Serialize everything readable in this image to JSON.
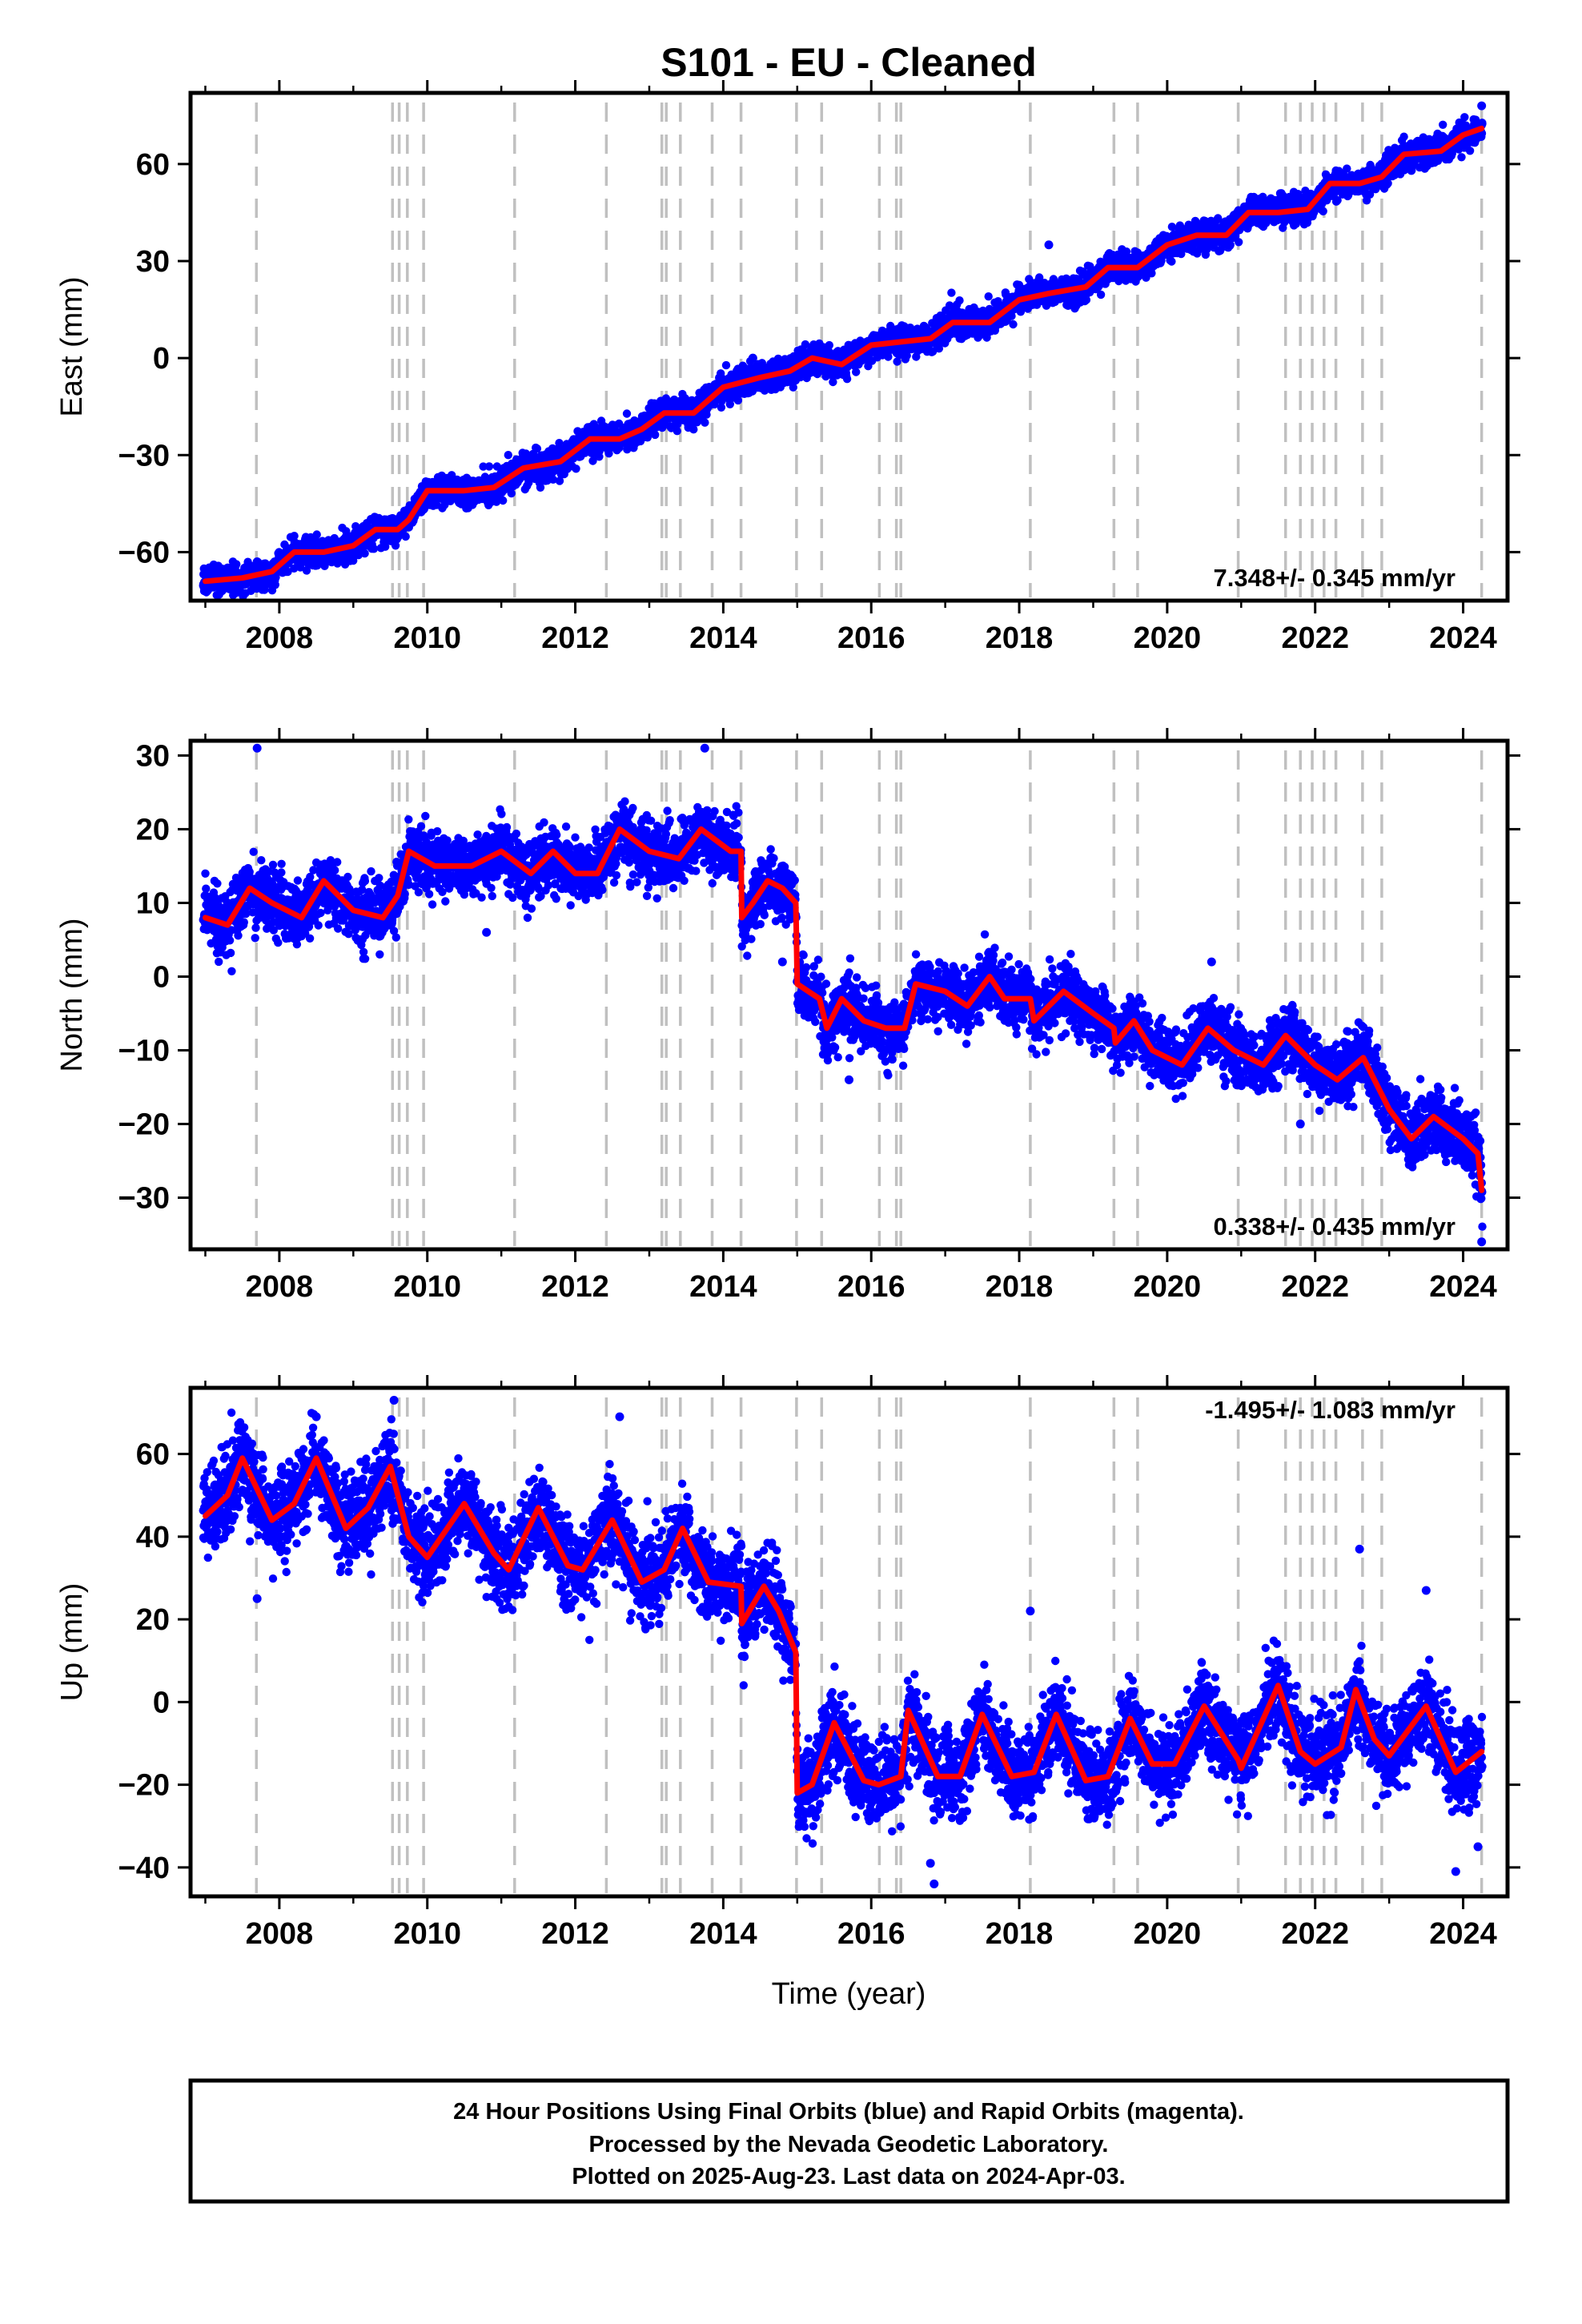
{
  "title": "S101  - EU - Cleaned",
  "xlabel": "Time (year)",
  "footer": {
    "line1": "24 Hour Positions Using Final Orbits (blue) and Rapid Orbits (magenta).",
    "line2": "Processed by the Nevada Geodetic Laboratory.",
    "line3": "Plotted on 2025-Aug-23. Last data on 2024-Apr-03."
  },
  "colors": {
    "points": "#0000ff",
    "model": "#ff0000",
    "events": "#c0c0c0",
    "frame": "#000000"
  },
  "chart_data": [
    {
      "type": "scatter",
      "component": "east",
      "ylabel": "East (mm)",
      "rate_text": "7.348+/- 0.345 mm/yr",
      "rate_position": "bottom-right",
      "xlim": [
        2006.8,
        2024.6
      ],
      "ylim": [
        -75,
        82
      ],
      "x_ticks": [
        2008,
        2010,
        2012,
        2014,
        2016,
        2018,
        2020,
        2022,
        2024
      ],
      "y_ticks": [
        -60,
        -30,
        0,
        30,
        60
      ],
      "model_points": [
        [
          2007.0,
          -69
        ],
        [
          2007.5,
          -68
        ],
        [
          2007.9,
          -66
        ],
        [
          2008.2,
          -60
        ],
        [
          2008.6,
          -60
        ],
        [
          2009.0,
          -58
        ],
        [
          2009.3,
          -53
        ],
        [
          2009.6,
          -53
        ],
        [
          2009.75,
          -50
        ],
        [
          2010.0,
          -41
        ],
        [
          2010.5,
          -41
        ],
        [
          2010.9,
          -40
        ],
        [
          2011.3,
          -34
        ],
        [
          2011.8,
          -32
        ],
        [
          2012.2,
          -25
        ],
        [
          2012.6,
          -25
        ],
        [
          2012.9,
          -22
        ],
        [
          2013.2,
          -17
        ],
        [
          2013.6,
          -17
        ],
        [
          2014.0,
          -9
        ],
        [
          2014.5,
          -6
        ],
        [
          2014.9,
          -4
        ],
        [
          2015.2,
          0
        ],
        [
          2015.6,
          -2
        ],
        [
          2016.0,
          4
        ],
        [
          2016.4,
          5
        ],
        [
          2016.8,
          6
        ],
        [
          2017.1,
          11
        ],
        [
          2017.6,
          11
        ],
        [
          2018.0,
          18
        ],
        [
          2018.4,
          20
        ],
        [
          2018.9,
          22
        ],
        [
          2019.2,
          28
        ],
        [
          2019.6,
          28
        ],
        [
          2020.0,
          35
        ],
        [
          2020.4,
          38
        ],
        [
          2020.8,
          38
        ],
        [
          2021.1,
          45
        ],
        [
          2021.5,
          45
        ],
        [
          2021.9,
          46
        ],
        [
          2022.2,
          54
        ],
        [
          2022.6,
          54
        ],
        [
          2022.9,
          56
        ],
        [
          2023.2,
          63
        ],
        [
          2023.7,
          64
        ],
        [
          2024.0,
          69
        ],
        [
          2024.25,
          71
        ]
      ],
      "noise": 2.2,
      "events": [
        2007.69,
        2009.53,
        2009.62,
        2009.73,
        2009.95,
        2011.18,
        2012.42,
        2013.17,
        2013.23,
        2013.42,
        2013.85,
        2014.24,
        2014.99,
        2015.33,
        2016.11,
        2016.34,
        2016.4,
        2018.15,
        2019.28,
        2019.6,
        2020.96,
        2021.6,
        2021.8,
        2021.96,
        2022.12,
        2022.28,
        2022.64,
        2022.9,
        2024.25
      ],
      "outliers": [
        [
          2007.7,
          -63
        ],
        [
          2012.5,
          -22
        ],
        [
          2013.75,
          -10
        ],
        [
          2014.4,
          0
        ],
        [
          2018.4,
          35
        ],
        [
          2023.3,
          58
        ],
        [
          2024.25,
          78
        ]
      ]
    },
    {
      "type": "scatter",
      "component": "north",
      "ylabel": "North (mm)",
      "rate_text": "0.338+/- 0.435 mm/yr",
      "rate_position": "bottom-right",
      "xlim": [
        2006.8,
        2024.6
      ],
      "ylim": [
        -37,
        32
      ],
      "x_ticks": [
        2008,
        2010,
        2012,
        2014,
        2016,
        2018,
        2020,
        2022,
        2024
      ],
      "y_ticks": [
        -30,
        -20,
        -10,
        0,
        10,
        20,
        30
      ],
      "model_points": [
        [
          2007.0,
          8
        ],
        [
          2007.3,
          7
        ],
        [
          2007.6,
          12
        ],
        [
          2007.9,
          10
        ],
        [
          2008.3,
          8
        ],
        [
          2008.6,
          13
        ],
        [
          2009.0,
          9
        ],
        [
          2009.4,
          8
        ],
        [
          2009.6,
          11
        ],
        [
          2009.75,
          17
        ],
        [
          2010.1,
          15
        ],
        [
          2010.6,
          15
        ],
        [
          2011.0,
          17
        ],
        [
          2011.4,
          14
        ],
        [
          2011.7,
          17
        ],
        [
          2012.0,
          14
        ],
        [
          2012.3,
          14
        ],
        [
          2012.6,
          20
        ],
        [
          2013.0,
          17
        ],
        [
          2013.4,
          16
        ],
        [
          2013.7,
          20
        ],
        [
          2014.1,
          17
        ],
        [
          2014.24,
          17
        ],
        [
          2014.25,
          8
        ],
        [
          2014.4,
          10
        ],
        [
          2014.6,
          13
        ],
        [
          2014.8,
          12
        ],
        [
          2014.98,
          10
        ],
        [
          2015.0,
          -1
        ],
        [
          2015.3,
          -3
        ],
        [
          2015.4,
          -7
        ],
        [
          2015.6,
          -3
        ],
        [
          2015.9,
          -6
        ],
        [
          2016.2,
          -7
        ],
        [
          2016.45,
          -7
        ],
        [
          2016.6,
          -1
        ],
        [
          2017.0,
          -2
        ],
        [
          2017.3,
          -4
        ],
        [
          2017.6,
          0
        ],
        [
          2017.8,
          -3
        ],
        [
          2018.15,
          -3
        ],
        [
          2018.2,
          -6
        ],
        [
          2018.6,
          -2
        ],
        [
          2019.0,
          -5
        ],
        [
          2019.28,
          -7
        ],
        [
          2019.3,
          -9
        ],
        [
          2019.55,
          -6
        ],
        [
          2019.8,
          -10
        ],
        [
          2020.2,
          -12
        ],
        [
          2020.55,
          -7
        ],
        [
          2020.9,
          -10
        ],
        [
          2021.3,
          -12
        ],
        [
          2021.6,
          -8
        ],
        [
          2022.0,
          -12
        ],
        [
          2022.3,
          -14
        ],
        [
          2022.65,
          -11
        ],
        [
          2023.0,
          -18
        ],
        [
          2023.3,
          -22
        ],
        [
          2023.6,
          -19
        ],
        [
          2024.0,
          -22
        ],
        [
          2024.2,
          -24
        ],
        [
          2024.25,
          -29
        ]
      ],
      "noise": 2.1,
      "events": [
        2007.69,
        2009.53,
        2009.62,
        2009.73,
        2009.95,
        2011.18,
        2012.42,
        2013.17,
        2013.23,
        2013.42,
        2013.85,
        2014.24,
        2014.99,
        2015.33,
        2016.11,
        2016.34,
        2016.4,
        2018.15,
        2019.28,
        2019.6,
        2020.96,
        2021.6,
        2021.8,
        2021.96,
        2022.12,
        2022.28,
        2022.64,
        2022.9,
        2024.25
      ],
      "outliers": [
        [
          2007.7,
          31
        ],
        [
          2013.75,
          31
        ],
        [
          2010.8,
          6
        ],
        [
          2015.7,
          -14
        ],
        [
          2020.6,
          2
        ],
        [
          2021.8,
          -20
        ],
        [
          2024.25,
          -36
        ],
        [
          2014.8,
          2
        ],
        [
          2014.6,
          13
        ]
      ]
    },
    {
      "type": "scatter",
      "component": "up",
      "ylabel": "Up (mm)",
      "rate_text": "-1.495+/- 1.083 mm/yr",
      "rate_position": "top-right",
      "xlim": [
        2006.8,
        2024.6
      ],
      "ylim": [
        -47,
        76
      ],
      "x_ticks": [
        2008,
        2010,
        2012,
        2014,
        2016,
        2018,
        2020,
        2022,
        2024
      ],
      "y_ticks": [
        -40,
        -20,
        0,
        20,
        40,
        60
      ],
      "model_points": [
        [
          2007.0,
          45
        ],
        [
          2007.3,
          50
        ],
        [
          2007.5,
          59
        ],
        [
          2007.9,
          44
        ],
        [
          2008.2,
          48
        ],
        [
          2008.5,
          59
        ],
        [
          2008.9,
          42
        ],
        [
          2009.2,
          47
        ],
        [
          2009.5,
          57
        ],
        [
          2009.75,
          40
        ],
        [
          2010.0,
          35
        ],
        [
          2010.5,
          48
        ],
        [
          2010.9,
          36
        ],
        [
          2011.1,
          32
        ],
        [
          2011.5,
          47
        ],
        [
          2011.9,
          33
        ],
        [
          2012.1,
          32
        ],
        [
          2012.5,
          44
        ],
        [
          2012.9,
          29
        ],
        [
          2013.2,
          32
        ],
        [
          2013.45,
          42
        ],
        [
          2013.8,
          29
        ],
        [
          2014.24,
          28
        ],
        [
          2014.25,
          19
        ],
        [
          2014.55,
          28
        ],
        [
          2014.75,
          22
        ],
        [
          2014.98,
          12
        ],
        [
          2015.0,
          -22
        ],
        [
          2015.2,
          -20
        ],
        [
          2015.5,
          -5
        ],
        [
          2015.9,
          -19
        ],
        [
          2016.1,
          -20
        ],
        [
          2016.4,
          -18
        ],
        [
          2016.5,
          -2
        ],
        [
          2016.9,
          -18
        ],
        [
          2017.2,
          -18
        ],
        [
          2017.5,
          -3
        ],
        [
          2017.9,
          -18
        ],
        [
          2018.2,
          -17
        ],
        [
          2018.5,
          -3
        ],
        [
          2018.9,
          -19
        ],
        [
          2019.2,
          -18
        ],
        [
          2019.5,
          -4
        ],
        [
          2019.8,
          -15
        ],
        [
          2020.1,
          -15
        ],
        [
          2020.5,
          -1
        ],
        [
          2020.96,
          -14
        ],
        [
          2021.0,
          -16
        ],
        [
          2021.5,
          4
        ],
        [
          2021.8,
          -12
        ],
        [
          2022.0,
          -15
        ],
        [
          2022.35,
          -11
        ],
        [
          2022.55,
          3
        ],
        [
          2022.8,
          -9
        ],
        [
          2023.0,
          -13
        ],
        [
          2023.5,
          -1
        ],
        [
          2023.9,
          -17
        ],
        [
          2024.25,
          -12
        ]
      ],
      "noise": 5.2,
      "events": [
        2007.69,
        2009.53,
        2009.62,
        2009.73,
        2009.95,
        2011.18,
        2012.42,
        2013.17,
        2013.23,
        2013.42,
        2013.85,
        2014.24,
        2014.99,
        2015.33,
        2016.11,
        2016.34,
        2016.4,
        2018.15,
        2019.28,
        2019.6,
        2020.96,
        2021.6,
        2021.8,
        2021.96,
        2022.12,
        2022.28,
        2022.64,
        2022.9,
        2024.25
      ],
      "outliers": [
        [
          2009.55,
          73
        ],
        [
          2008.5,
          69
        ],
        [
          2012.6,
          69
        ],
        [
          2007.7,
          25
        ],
        [
          2016.8,
          -39
        ],
        [
          2016.85,
          -44
        ],
        [
          2023.9,
          -41
        ],
        [
          2022.6,
          37
        ],
        [
          2023.5,
          27
        ],
        [
          2018.15,
          22
        ],
        [
          2024.2,
          -35
        ]
      ]
    }
  ]
}
